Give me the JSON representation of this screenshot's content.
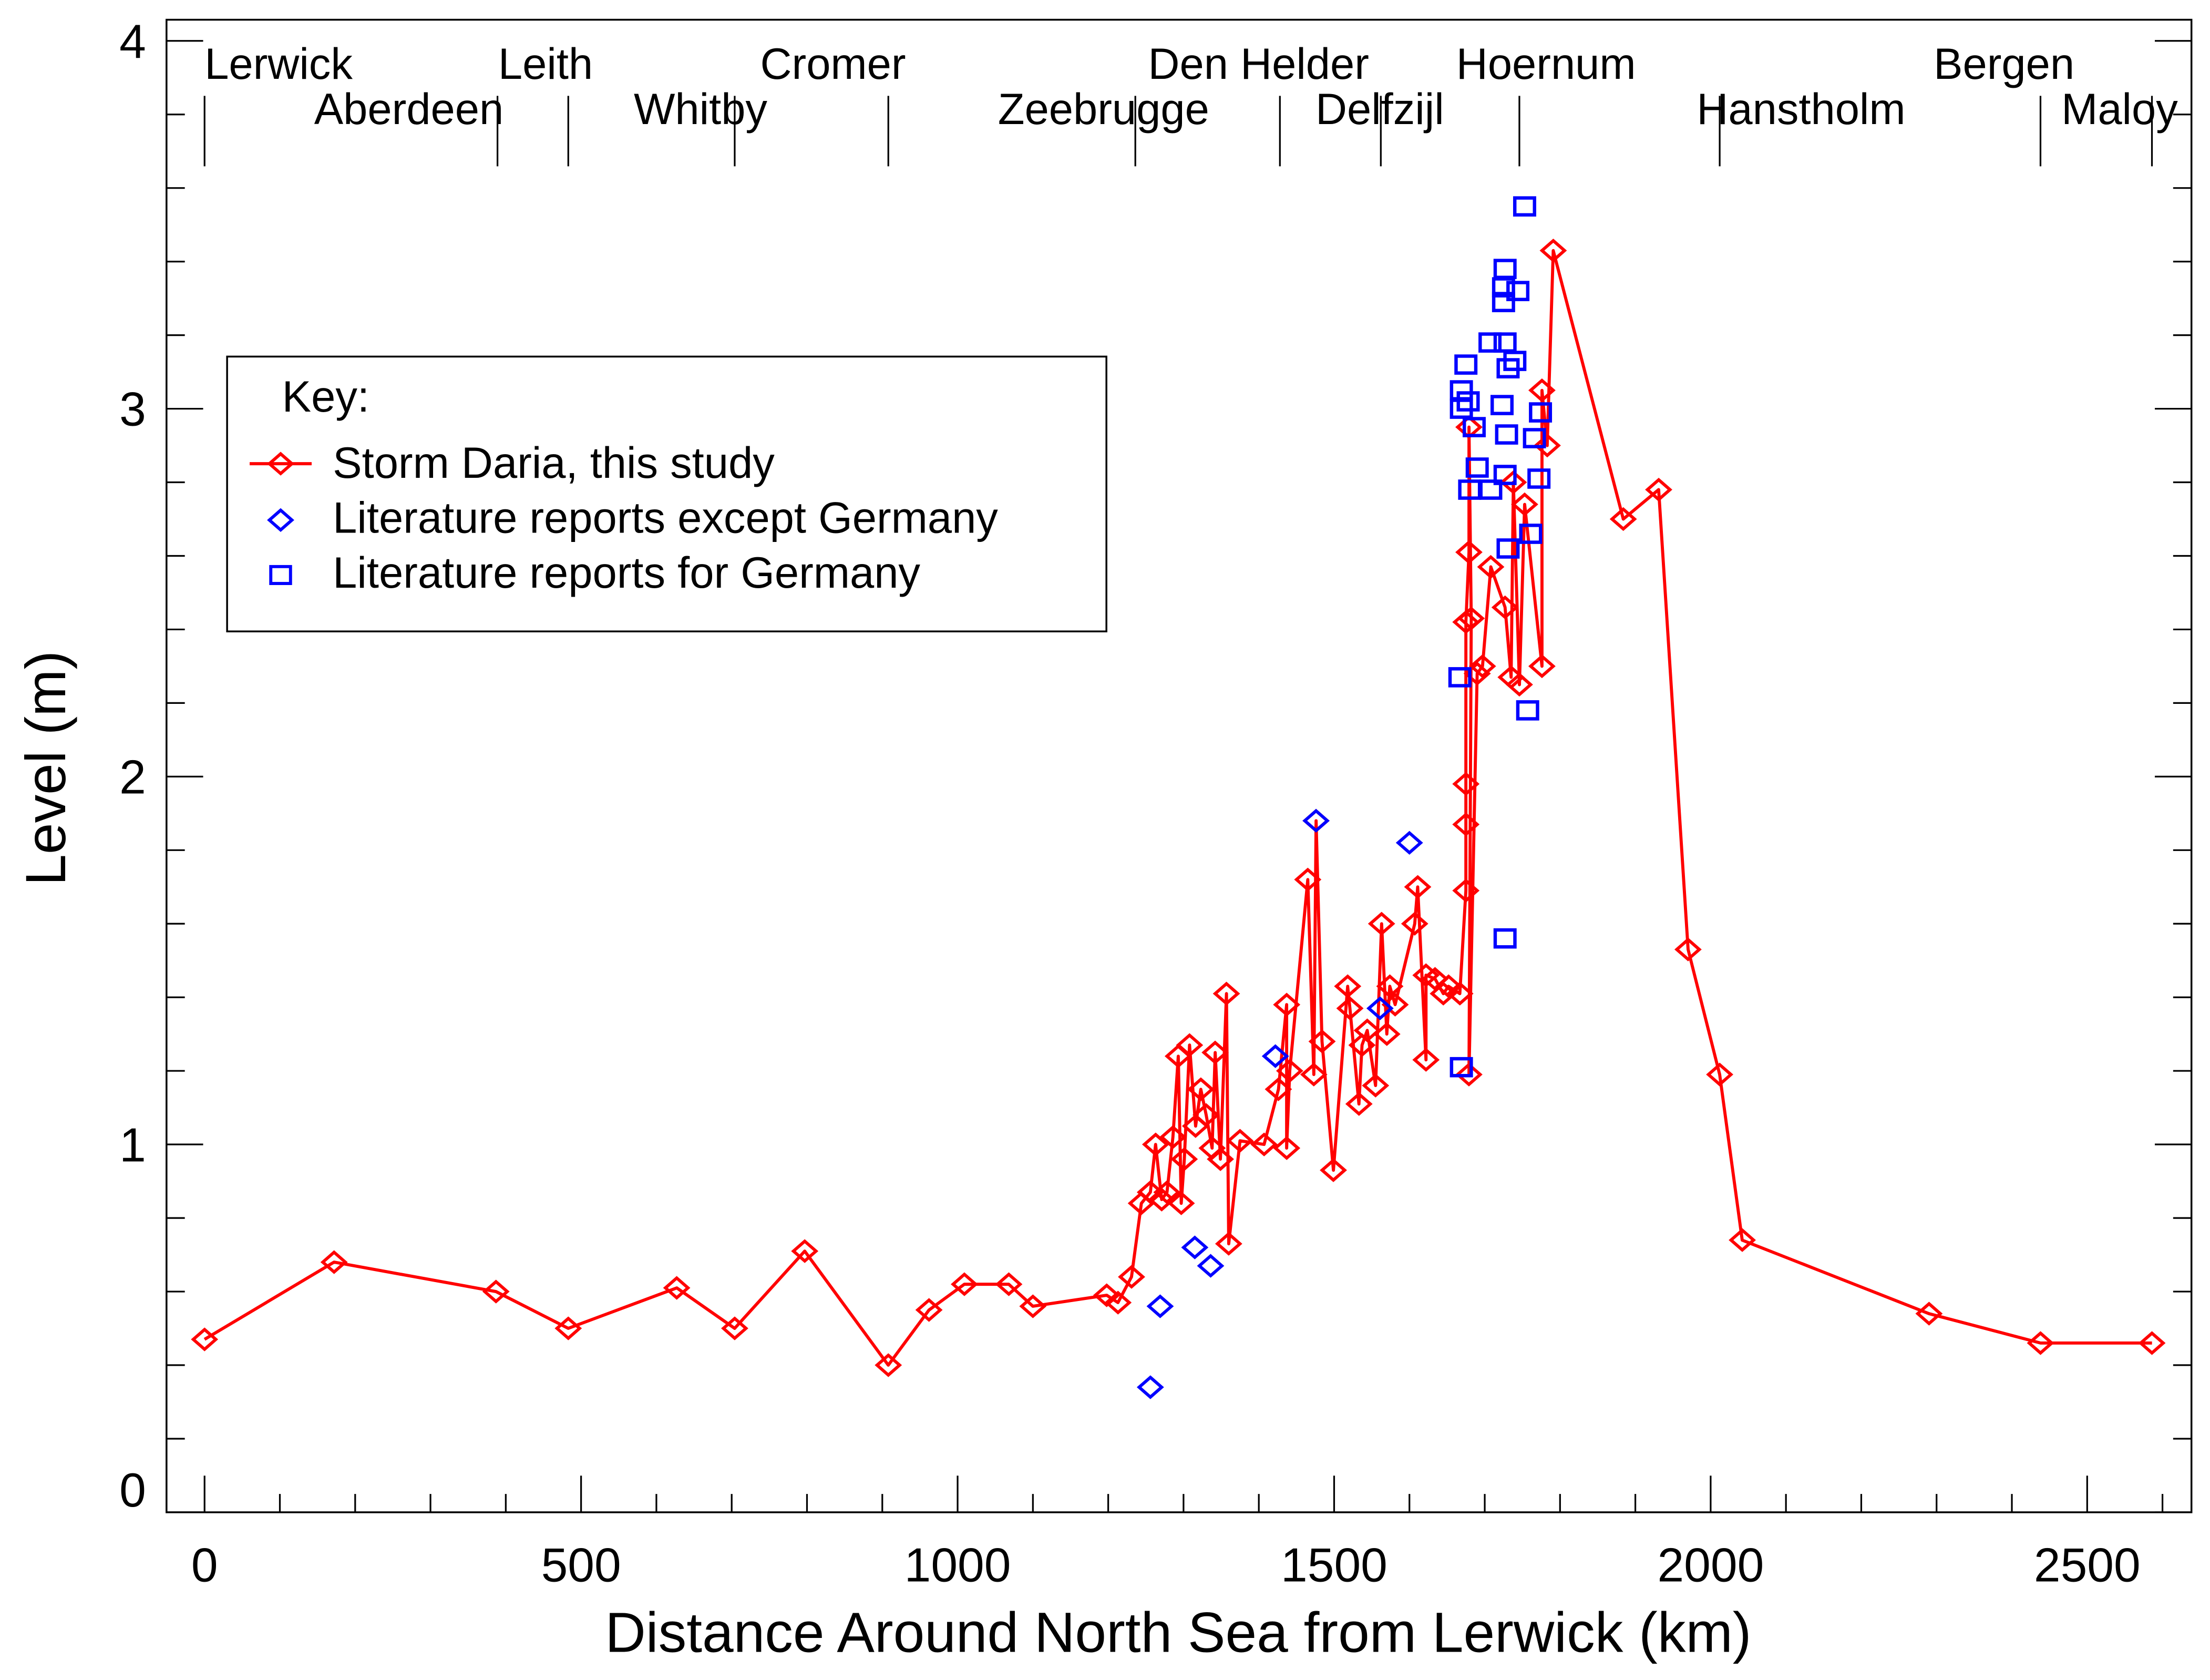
{
  "chart_data": {
    "type": "scatter",
    "title": "",
    "xlabel": "Distance Around North Sea from Lerwick (km)",
    "ylabel": "Level (m)",
    "xlim": [
      -50,
      2640
    ],
    "ylim": [
      0,
      4.06
    ],
    "xticks": [
      0,
      500,
      1000,
      1500,
      2000,
      2500
    ],
    "xtick_labels": [
      "0",
      "500",
      "1000",
      "1500",
      "2000",
      "2500"
    ],
    "yticks": [
      0,
      1,
      2,
      3,
      4
    ],
    "ytick_labels": [
      "0",
      "1",
      "2",
      "3",
      "4"
    ],
    "x_minor_step": 100,
    "y_minor_step": 0.2,
    "grid": false,
    "legend": {
      "placement": "upper-left",
      "title": "Key:",
      "entries": [
        "Storm Daria, this study",
        "Literature reports except Germany",
        "Literature reports for Germany"
      ]
    },
    "stations": [
      {
        "name": "Lerwick",
        "km": 0,
        "row": 1
      },
      {
        "name": "Aberdeen",
        "km": 389,
        "row": 2
      },
      {
        "name": "Leith",
        "km": 483,
        "row": 1
      },
      {
        "name": "Whitby",
        "km": 704,
        "row": 2
      },
      {
        "name": "Cromer",
        "km": 908,
        "row": 1
      },
      {
        "name": "Zeebrugge",
        "km": 1236,
        "row": 2
      },
      {
        "name": "Den Helder",
        "km": 1428,
        "row": 1
      },
      {
        "name": "Delfzijl",
        "km": 1562,
        "row": 2
      },
      {
        "name": "Hoernum",
        "km": 1746,
        "row": 1
      },
      {
        "name": "Hanstholm",
        "km": 2012,
        "row": 2
      },
      {
        "name": "Bergen",
        "km": 2438,
        "row": 1
      },
      {
        "name": "Maloy",
        "km": 2586,
        "row": 2
      }
    ],
    "series": [
      {
        "name": "Storm Daria, this study",
        "color": "#ff0000",
        "marker": "diamond",
        "line": true,
        "points": [
          [
            0,
            0.47
          ],
          [
            172,
            0.68
          ],
          [
            387,
            0.6
          ],
          [
            483,
            0.5
          ],
          [
            627,
            0.61
          ],
          [
            704,
            0.5
          ],
          [
            797,
            0.71
          ],
          [
            908,
            0.4
          ],
          [
            962,
            0.55
          ],
          [
            1009,
            0.62
          ],
          [
            1068,
            0.62
          ],
          [
            1100,
            0.56
          ],
          [
            1198,
            0.59
          ],
          [
            1213,
            0.57
          ],
          [
            1231,
            0.64
          ],
          [
            1244,
            0.84
          ],
          [
            1256,
            0.87
          ],
          [
            1263,
            1.0
          ],
          [
            1271,
            0.85
          ],
          [
            1278,
            0.87
          ],
          [
            1286,
            1.02
          ],
          [
            1293,
            1.24
          ],
          [
            1297,
            0.84
          ],
          [
            1301,
            0.96
          ],
          [
            1308,
            1.27
          ],
          [
            1316,
            1.05
          ],
          [
            1323,
            1.15
          ],
          [
            1330,
            1.08
          ],
          [
            1338,
            0.99
          ],
          [
            1342,
            1.25
          ],
          [
            1349,
            0.96
          ],
          [
            1357,
            1.41
          ],
          [
            1360,
            0.73
          ],
          [
            1375,
            1.01
          ],
          [
            1407,
            1.0
          ],
          [
            1426,
            1.15
          ],
          [
            1437,
            1.38
          ],
          [
            1437,
            0.99
          ],
          [
            1441,
            1.2
          ],
          [
            1465,
            1.72
          ],
          [
            1473,
            1.19
          ],
          [
            1476,
            1.88
          ],
          [
            1484,
            1.28
          ],
          [
            1499,
            0.93
          ],
          [
            1518,
            1.43
          ],
          [
            1521,
            1.37
          ],
          [
            1533,
            1.11
          ],
          [
            1537,
            1.27
          ],
          [
            1544,
            1.31
          ],
          [
            1555,
            1.16
          ],
          [
            1563,
            1.6
          ],
          [
            1570,
            1.3
          ],
          [
            1574,
            1.43
          ],
          [
            1581,
            1.38
          ],
          [
            1607,
            1.6
          ],
          [
            1611,
            1.7
          ],
          [
            1622,
            1.23
          ],
          [
            1622,
            1.46
          ],
          [
            1634,
            1.45
          ],
          [
            1645,
            1.41
          ],
          [
            1652,
            1.43
          ],
          [
            1667,
            1.41
          ],
          [
            1675,
            1.69
          ],
          [
            1675,
            1.87
          ],
          [
            1675,
            1.98
          ],
          [
            1675,
            2.42
          ],
          [
            1679,
            2.61
          ],
          [
            1679,
            2.95
          ],
          [
            1682,
            2.43
          ],
          [
            1679,
            1.19
          ],
          [
            1690,
            2.28
          ],
          [
            1697,
            2.3
          ],
          [
            1708,
            2.57
          ],
          [
            1727,
            2.46
          ],
          [
            1735,
            2.27
          ],
          [
            1738,
            2.8
          ],
          [
            1746,
            2.25
          ],
          [
            1753,
            2.74
          ],
          [
            1776,
            2.3
          ],
          [
            1776,
            3.05
          ],
          [
            1783,
            2.9
          ],
          [
            1791,
            3.43
          ],
          [
            1884,
            2.7
          ],
          [
            1931,
            2.78
          ],
          [
            1970,
            1.53
          ],
          [
            2012,
            1.19
          ],
          [
            2042,
            0.74
          ],
          [
            2290,
            0.54
          ],
          [
            2438,
            0.46
          ],
          [
            2586,
            0.46
          ]
        ]
      },
      {
        "name": "Literature reports except Germany",
        "color": "#0000ff",
        "marker": "diamond",
        "line": false,
        "points": [
          [
            1256,
            0.34
          ],
          [
            1269,
            0.56
          ],
          [
            1315,
            0.72
          ],
          [
            1336,
            0.67
          ],
          [
            1422,
            1.24
          ],
          [
            1476,
            1.88
          ],
          [
            1561,
            1.37
          ],
          [
            1600,
            1.82
          ]
        ]
      },
      {
        "name": "Literature reports for Germany",
        "color": "#0000ff",
        "marker": "square",
        "line": false,
        "points": [
          [
            1753,
            3.55
          ],
          [
            1727,
            3.38
          ],
          [
            1725,
            3.33
          ],
          [
            1744,
            3.32
          ],
          [
            1725,
            3.29
          ],
          [
            1707,
            3.18
          ],
          [
            1727,
            3.18
          ],
          [
            1740,
            3.13
          ],
          [
            1675,
            3.12
          ],
          [
            1731,
            3.11
          ],
          [
            1669,
            3.05
          ],
          [
            1678,
            3.02
          ],
          [
            1669,
            3.0
          ],
          [
            1723,
            3.01
          ],
          [
            1774,
            2.99
          ],
          [
            1686,
            2.95
          ],
          [
            1729,
            2.93
          ],
          [
            1766,
            2.92
          ],
          [
            1690,
            2.84
          ],
          [
            1727,
            2.82
          ],
          [
            1772,
            2.81
          ],
          [
            1680,
            2.78
          ],
          [
            1708,
            2.78
          ],
          [
            1761,
            2.66
          ],
          [
            1731,
            2.62
          ],
          [
            1667,
            2.27
          ],
          [
            1757,
            2.18
          ],
          [
            1727,
            1.56
          ],
          [
            1669,
            1.21
          ]
        ]
      }
    ]
  }
}
